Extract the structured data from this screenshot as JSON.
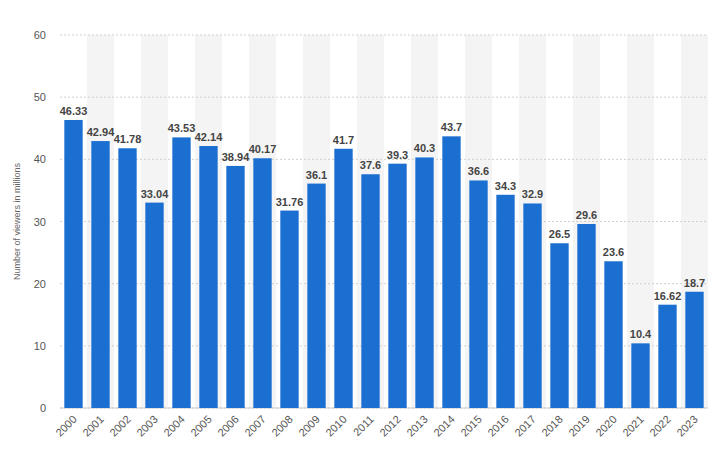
{
  "chart_data": {
    "type": "bar",
    "y_label": "Number of viewers in millions",
    "categories": [
      "2000",
      "2001",
      "2002",
      "2003",
      "2004",
      "2005",
      "2006",
      "2007",
      "2008",
      "2009",
      "2010",
      "2011",
      "2012",
      "2013",
      "2014",
      "2015",
      "2016",
      "2017",
      "2018",
      "2019",
      "2020",
      "2021",
      "2022",
      "2023"
    ],
    "values": [
      46.33,
      42.94,
      41.78,
      33.04,
      43.53,
      42.14,
      38.94,
      40.17,
      31.76,
      36.1,
      41.7,
      37.6,
      39.3,
      40.3,
      43.7,
      36.6,
      34.3,
      32.9,
      26.5,
      29.6,
      23.6,
      10.4,
      16.62,
      18.7
    ],
    "color": "#1b6fd0",
    "ylim": [
      0,
      60
    ],
    "yticks": [
      0,
      10,
      20,
      30,
      40,
      50,
      60
    ],
    "grid": true,
    "data_labels": true
  }
}
